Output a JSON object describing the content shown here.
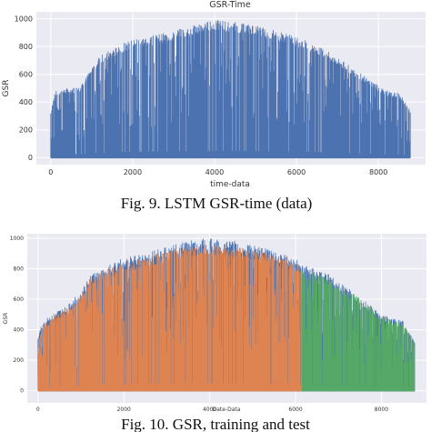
{
  "chart_data": [
    {
      "type": "bar",
      "title": "GSR-Time",
      "xlabel": "time-data",
      "ylabel": "GSR",
      "xlim": [
        -350,
        9150
      ],
      "ylim": [
        -50,
        1050
      ],
      "xticks": [
        0,
        2000,
        4000,
        6000,
        8000
      ],
      "yticks": [
        0,
        200,
        400,
        600,
        800,
        1000
      ],
      "grid": true,
      "background": "#eaeaf2",
      "series": [
        {
          "color": "#4c72b0",
          "envelope": [
            [
              0,
              330
            ],
            [
              100,
              480
            ],
            [
              400,
              500
            ],
            [
              700,
              510
            ],
            [
              800,
              550
            ],
            [
              1000,
              650
            ],
            [
              1200,
              740
            ],
            [
              1500,
              780
            ],
            [
              1800,
              830
            ],
            [
              2100,
              860
            ],
            [
              2500,
              880
            ],
            [
              2800,
              900
            ],
            [
              3200,
              930
            ],
            [
              3500,
              960
            ],
            [
              3800,
              980
            ],
            [
              4100,
              990
            ],
            [
              4400,
              980
            ],
            [
              4700,
              970
            ],
            [
              5000,
              960
            ],
            [
              5300,
              930
            ],
            [
              5600,
              910
            ],
            [
              5900,
              880
            ],
            [
              6200,
              850
            ],
            [
              6500,
              810
            ],
            [
              6800,
              760
            ],
            [
              7100,
              700
            ],
            [
              7400,
              640
            ],
            [
              7700,
              580
            ],
            [
              8000,
              520
            ],
            [
              8300,
              470
            ],
            [
              8500,
              470
            ],
            [
              8700,
              380
            ],
            [
              8780,
              330
            ]
          ]
        }
      ],
      "caption": "Fig. 9. LSTM GSR-time (data)"
    },
    {
      "type": "bar",
      "title": "",
      "xlabel": "Date-Data",
      "ylabel": "GSR",
      "xlim": [
        -250,
        9050
      ],
      "ylim": [
        -80,
        1030
      ],
      "xticks": [
        0,
        2000,
        4000,
        6000,
        8000
      ],
      "yticks": [
        0,
        200,
        400,
        600,
        800,
        1000
      ],
      "grid": true,
      "background": "#eaeaf2",
      "train_test_split_x": 6150,
      "series": [
        {
          "color": "#4c72b0",
          "envelope": [
            [
              0,
              350
            ],
            [
              100,
              450
            ],
            [
              400,
              520
            ],
            [
              700,
              560
            ],
            [
              800,
              600
            ],
            [
              1000,
              650
            ],
            [
              1200,
              760
            ],
            [
              1500,
              800
            ],
            [
              1800,
              850
            ],
            [
              2100,
              880
            ],
            [
              2500,
              900
            ],
            [
              2800,
              930
            ],
            [
              3200,
              960
            ],
            [
              3500,
              990
            ],
            [
              3800,
              1000
            ],
            [
              4100,
              1000
            ],
            [
              4400,
              990
            ],
            [
              4700,
              980
            ],
            [
              5000,
              960
            ],
            [
              5300,
              940
            ],
            [
              5600,
              910
            ],
            [
              5900,
              880
            ],
            [
              6200,
              840
            ],
            [
              6500,
              800
            ],
            [
              6800,
              760
            ],
            [
              7100,
              700
            ],
            [
              7400,
              640
            ],
            [
              7700,
              570
            ],
            [
              8000,
              500
            ],
            [
              8300,
              470
            ],
            [
              8500,
              460
            ],
            [
              8700,
              360
            ],
            [
              8780,
              330
            ]
          ]
        },
        {
          "color": "#dd8452",
          "envelope": [
            [
              0,
              330
            ],
            [
              100,
              430
            ],
            [
              400,
              500
            ],
            [
              700,
              540
            ],
            [
              800,
              580
            ],
            [
              1000,
              630
            ],
            [
              1200,
              740
            ],
            [
              1500,
              780
            ],
            [
              1800,
              820
            ],
            [
              2100,
              850
            ],
            [
              2500,
              870
            ],
            [
              2800,
              900
            ],
            [
              3200,
              930
            ],
            [
              3500,
              950
            ],
            [
              3800,
              960
            ],
            [
              4100,
              960
            ],
            [
              4400,
              950
            ],
            [
              4700,
              940
            ],
            [
              5000,
              930
            ],
            [
              5300,
              910
            ],
            [
              5600,
              880
            ],
            [
              5900,
              850
            ],
            [
              6150,
              820
            ]
          ]
        },
        {
          "color": "#55a868",
          "envelope": [
            [
              6150,
              800
            ],
            [
              6500,
              770
            ],
            [
              6800,
              730
            ],
            [
              7100,
              680
            ],
            [
              7400,
              630
            ],
            [
              7700,
              560
            ],
            [
              8000,
              490
            ],
            [
              8300,
              460
            ],
            [
              8500,
              450
            ],
            [
              8700,
              350
            ],
            [
              8780,
              320
            ]
          ]
        }
      ],
      "caption": "Fig. 10. GSR, training and test"
    }
  ]
}
